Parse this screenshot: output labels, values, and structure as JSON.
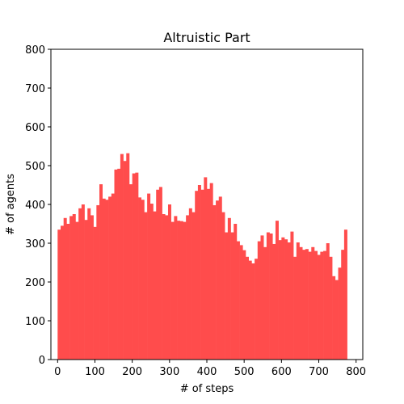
{
  "chart_data": {
    "type": "bar",
    "title": "Altruistic Part",
    "xlabel": "# of steps",
    "ylabel": "# of agents",
    "xlim": [
      -18,
      818
    ],
    "ylim": [
      0,
      800
    ],
    "xticks": [
      0,
      100,
      200,
      300,
      400,
      500,
      600,
      700,
      800
    ],
    "yticks": [
      0,
      100,
      200,
      300,
      400,
      500,
      600,
      700,
      800
    ],
    "grid": false,
    "bar_color": "#ff4c4c",
    "bin_width": 8,
    "bin_start": 0,
    "values": [
      335,
      345,
      365,
      350,
      370,
      375,
      355,
      390,
      400,
      360,
      390,
      372,
      342,
      398,
      452,
      415,
      412,
      420,
      428,
      490,
      492,
      530,
      512,
      532,
      452,
      480,
      482,
      418,
      412,
      380,
      428,
      402,
      382,
      438,
      445,
      375,
      372,
      400,
      355,
      370,
      358,
      357,
      355,
      372,
      390,
      380,
      435,
      450,
      438,
      470,
      440,
      455,
      398,
      410,
      420,
      380,
      328,
      365,
      328,
      350,
      305,
      295,
      282,
      265,
      255,
      248,
      260,
      305,
      320,
      290,
      328,
      325,
      298,
      358,
      308,
      315,
      310,
      302,
      330,
      265,
      302,
      290,
      283,
      285,
      278,
      290,
      280,
      270,
      278,
      280,
      300,
      265,
      215,
      205,
      237,
      283,
      335
    ]
  }
}
